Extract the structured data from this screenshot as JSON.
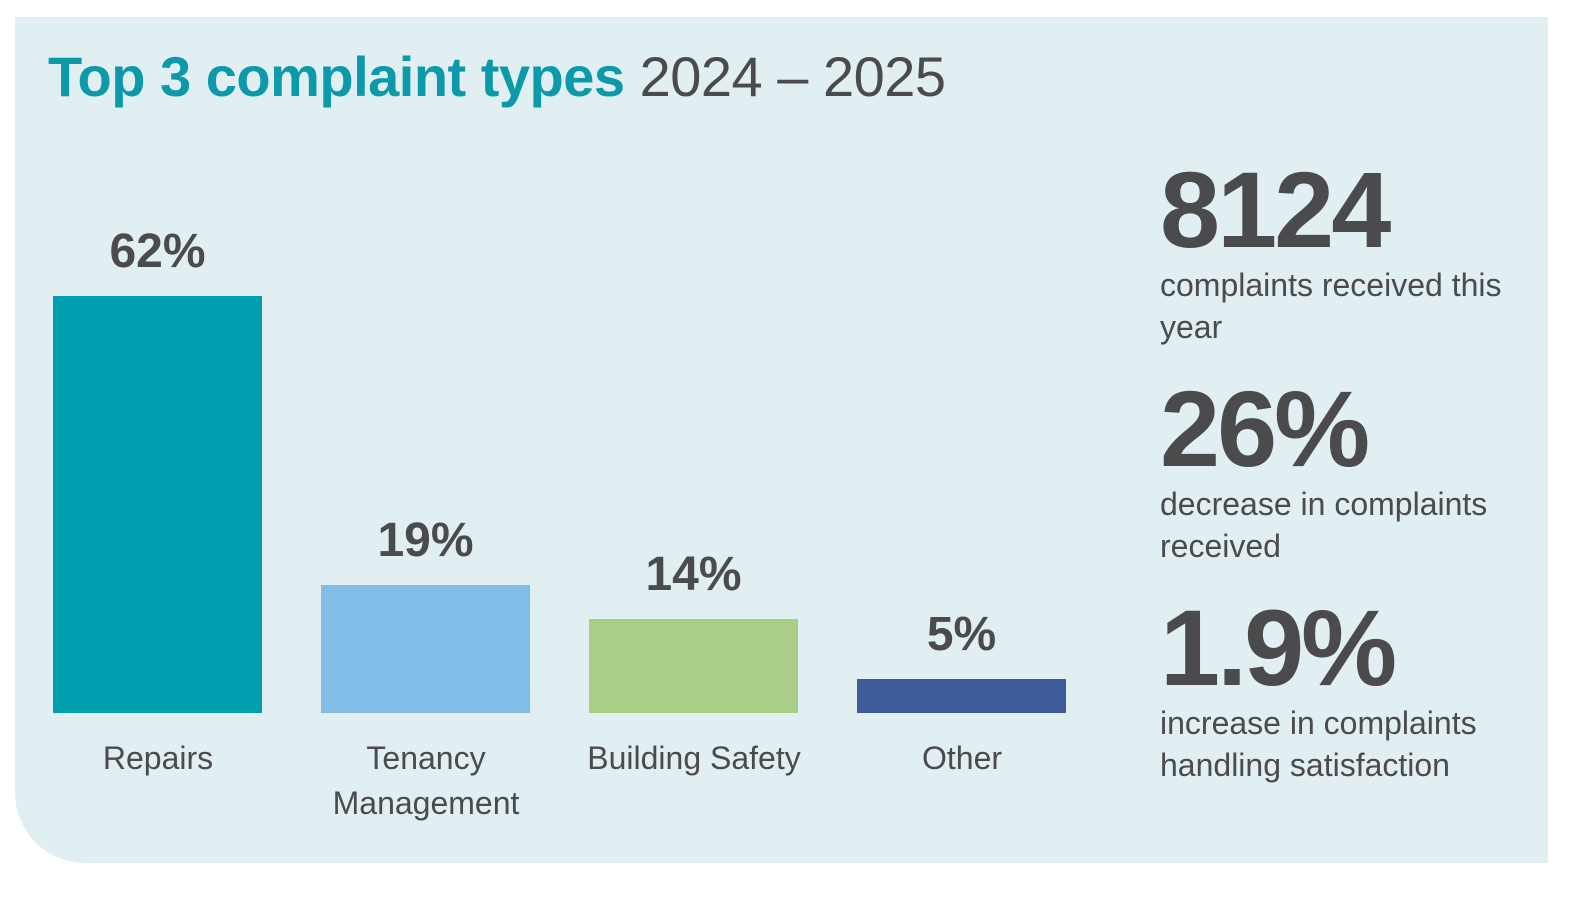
{
  "chart_data": {
    "type": "bar",
    "title": "Top 3 complaint types",
    "subtitle": "2024 – 2025",
    "categories": [
      "Repairs",
      "Tenancy Management",
      "Building Safety",
      "Other"
    ],
    "values": [
      62,
      19,
      14,
      5
    ],
    "value_labels": [
      "62%",
      "19%",
      "14%",
      "5%"
    ],
    "colors": [
      "#009fb0",
      "#82bde8",
      "#a8cf85",
      "#3f5c9a"
    ]
  },
  "stats": [
    {
      "value": "8124",
      "label": "complaints received this year"
    },
    {
      "value": "26%",
      "label": "decrease in complaints received"
    },
    {
      "value": "1.9%",
      "label": "increase in complaints handling satisfaction"
    }
  ]
}
